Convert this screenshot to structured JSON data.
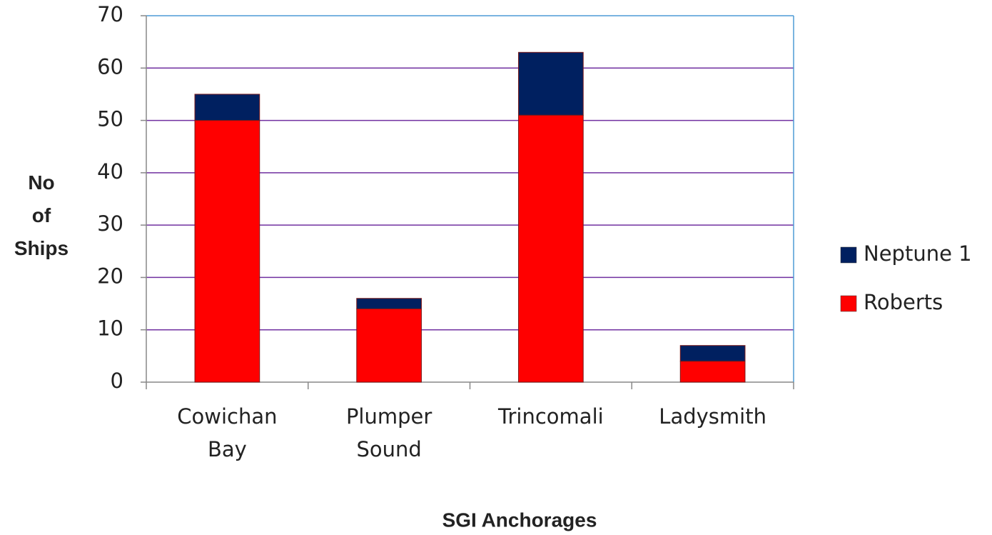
{
  "chart_data": {
    "type": "stacked_bar",
    "x_label": "SGI Anchorages",
    "y_label": "No of Ships",
    "categories": [
      "Cowichan Bay",
      "Plumper Sound",
      "Trincomali",
      "Ladysmith"
    ],
    "series": [
      {
        "name": "Roberts",
        "color": "#ff0000",
        "values": [
          50,
          14,
          51,
          4
        ]
      },
      {
        "name": "Neptune 1",
        "color": "#002060",
        "values": [
          5,
          2,
          12,
          3
        ]
      }
    ],
    "ylim": [
      0,
      70
    ],
    "yticks": [
      0,
      10,
      20,
      30,
      40,
      50,
      60,
      70
    ],
    "grid": true,
    "legend": "right"
  }
}
